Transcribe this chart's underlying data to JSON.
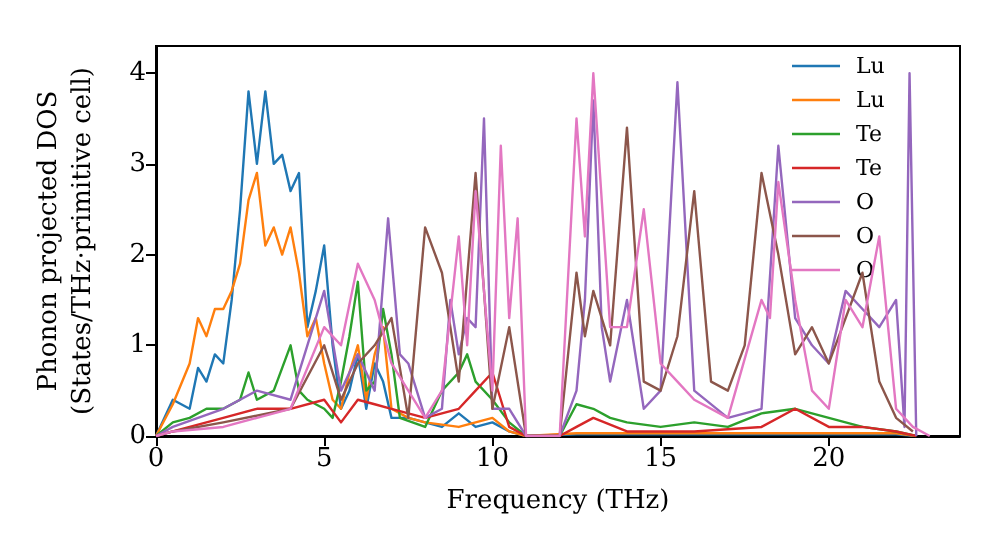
{
  "chart_data": {
    "type": "line",
    "xlabel": "Frequency (THz)",
    "ylabel": "Phonon projected DOS\n(States/THz·primitive cell)",
    "xlim": [
      0,
      23.9
    ],
    "ylim": [
      0,
      4.3
    ],
    "xticks": [
      0,
      5,
      10,
      15,
      20
    ],
    "yticks": [
      0,
      1,
      2,
      3,
      4
    ],
    "grid": false,
    "legend": "top right",
    "marker": "none",
    "line_style": "solid",
    "series": [
      {
        "name": "Lu",
        "color": "#1f77b4",
        "x": [
          0,
          0.5,
          1,
          1.25,
          1.5,
          1.75,
          2,
          2.25,
          2.5,
          2.75,
          3,
          3.25,
          3.5,
          3.75,
          4,
          4.25,
          4.5,
          4.75,
          5,
          5.25,
          5.5,
          5.75,
          6,
          6.25,
          6.5,
          6.75,
          7,
          7.5,
          8,
          8.5,
          9,
          9.5,
          10,
          10.5,
          11,
          12.5,
          15,
          18,
          20,
          22,
          22.6
        ],
        "values": [
          0,
          0.4,
          0.3,
          0.75,
          0.6,
          0.9,
          0.8,
          1.5,
          2.5,
          3.8,
          3.0,
          3.8,
          3.0,
          3.1,
          2.7,
          2.9,
          1.2,
          1.6,
          2.1,
          1.0,
          0.3,
          0.5,
          0.9,
          0.3,
          0.8,
          0.6,
          0.2,
          0.2,
          0.15,
          0.1,
          0.25,
          0.1,
          0.15,
          0.05,
          0,
          0.02,
          0.02,
          0.02,
          0.02,
          0.02,
          0
        ]
      },
      {
        "name": "Lu",
        "color": "#ff7f0e",
        "x": [
          0,
          0.5,
          1,
          1.25,
          1.5,
          1.75,
          2,
          2.25,
          2.5,
          2.75,
          3,
          3.25,
          3.5,
          3.75,
          4,
          4.25,
          4.5,
          4.75,
          5,
          5.25,
          5.5,
          5.75,
          6,
          6.25,
          6.5,
          6.75,
          7,
          7.5,
          8,
          9,
          10,
          10.5,
          11,
          12.5,
          15,
          18,
          20,
          22,
          22.6
        ],
        "values": [
          0,
          0.35,
          0.8,
          1.3,
          1.1,
          1.4,
          1.4,
          1.6,
          1.9,
          2.6,
          2.9,
          2.1,
          2.3,
          2.0,
          2.3,
          1.8,
          1.1,
          1.3,
          0.8,
          0.4,
          0.3,
          0.7,
          1.0,
          0.4,
          0.9,
          1.2,
          0.3,
          0.2,
          0.15,
          0.1,
          0.2,
          0.05,
          0,
          0.03,
          0.03,
          0.03,
          0.03,
          0.03,
          0
        ]
      },
      {
        "name": "Te",
        "color": "#2ca02c",
        "x": [
          0,
          0.5,
          1,
          1.5,
          2,
          2.5,
          2.75,
          3,
          3.5,
          4,
          4.25,
          4.5,
          5,
          5.25,
          5.5,
          5.75,
          6,
          6.25,
          6.5,
          6.75,
          7,
          7.25,
          8,
          8.5,
          9,
          9.25,
          9.5,
          10,
          10.5,
          11,
          12,
          12.5,
          13,
          13.5,
          14,
          15,
          16,
          17,
          18,
          19,
          20,
          21,
          22,
          22.6
        ],
        "values": [
          0,
          0.15,
          0.2,
          0.3,
          0.3,
          0.4,
          0.7,
          0.4,
          0.5,
          1.0,
          0.5,
          0.4,
          0.3,
          0.2,
          0.6,
          1.1,
          1.7,
          0.5,
          0.6,
          1.4,
          0.9,
          0.2,
          0.1,
          0.5,
          0.7,
          0.9,
          0.6,
          0.4,
          0.15,
          0,
          0,
          0.35,
          0.3,
          0.2,
          0.15,
          0.1,
          0.15,
          0.1,
          0.25,
          0.3,
          0.2,
          0.1,
          0.05,
          0
        ]
      },
      {
        "name": "Te",
        "color": "#d62728",
        "x": [
          0,
          0.5,
          1,
          2,
          3,
          4,
          5,
          5.5,
          6,
          6.5,
          7,
          8,
          9,
          9.5,
          10,
          10.5,
          11,
          12,
          12.5,
          13,
          14,
          15,
          16,
          18,
          19,
          20,
          21,
          22,
          22.6
        ],
        "values": [
          0,
          0.05,
          0.1,
          0.2,
          0.3,
          0.3,
          0.4,
          0.15,
          0.4,
          0.35,
          0.3,
          0.2,
          0.3,
          0.5,
          0.7,
          0.1,
          0,
          0,
          0.1,
          0.2,
          0.05,
          0.05,
          0.05,
          0.1,
          0.3,
          0.1,
          0.1,
          0.05,
          0
        ]
      },
      {
        "name": "O",
        "color": "#9467bd",
        "x": [
          0,
          0.5,
          2,
          3,
          4,
          4.5,
          5,
          5.5,
          6,
          6.5,
          6.9,
          7.25,
          7.5,
          8,
          8.5,
          8.75,
          9,
          9.25,
          9.5,
          9.75,
          10,
          10.5,
          11,
          12,
          12.5,
          12.75,
          13,
          13.25,
          13.5,
          14,
          14.5,
          15,
          15.5,
          16,
          17,
          18,
          18.5,
          19,
          19.5,
          20,
          20.5,
          21,
          21.5,
          22,
          22.25,
          22.4,
          22.6
        ],
        "values": [
          0,
          0.1,
          0.3,
          0.5,
          0.4,
          1.0,
          1.6,
          0.5,
          0.9,
          0.5,
          2.4,
          0.9,
          0.8,
          0.2,
          0.3,
          1.5,
          0.9,
          1.3,
          1.2,
          3.5,
          0.3,
          0.3,
          0,
          0,
          0.5,
          1.5,
          3.7,
          1.2,
          0.6,
          1.5,
          0.3,
          0.5,
          3.9,
          0.5,
          0.2,
          0.3,
          3.2,
          1.3,
          1.0,
          0.8,
          1.6,
          1.4,
          1.2,
          1.5,
          0.1,
          4.0,
          0
        ]
      },
      {
        "name": "O",
        "color": "#8c564b",
        "x": [
          0,
          0.5,
          2,
          4,
          5,
          5.5,
          6,
          6.5,
          7,
          7.5,
          8,
          8.5,
          9,
          9.5,
          10,
          10.5,
          11,
          12,
          12.5,
          12.75,
          13,
          13.5,
          14,
          14.5,
          15,
          15.5,
          16,
          16.5,
          17,
          17.5,
          18,
          18.5,
          19,
          19.5,
          20,
          20.5,
          21,
          21.5,
          22,
          22.5
        ],
        "values": [
          0,
          0.05,
          0.15,
          0.3,
          1.0,
          0.4,
          0.8,
          1.0,
          1.3,
          0.2,
          2.3,
          1.8,
          0.6,
          2.9,
          0.3,
          1.2,
          0,
          0,
          1.8,
          1.1,
          1.6,
          1.0,
          3.4,
          0.6,
          0.5,
          1.1,
          2.7,
          0.6,
          0.5,
          1.0,
          2.9,
          2.0,
          0.9,
          1.2,
          0.8,
          1.3,
          1.8,
          0.6,
          0.2,
          0.05
        ]
      },
      {
        "name": "O",
        "color": "#e377c2",
        "x": [
          0,
          0.5,
          2,
          3,
          4,
          5,
          5.5,
          6,
          6.5,
          7,
          7.5,
          8,
          8.5,
          9,
          9.25,
          9.5,
          10,
          10.25,
          10.5,
          10.75,
          11,
          12,
          12.5,
          12.75,
          13,
          13.5,
          14,
          14.5,
          15,
          15.5,
          16,
          17,
          18,
          18.25,
          18.5,
          19,
          19.5,
          20,
          20.5,
          21,
          21.5,
          22,
          22.5,
          23
        ],
        "values": [
          0,
          0.05,
          0.1,
          0.2,
          0.3,
          1.2,
          1.0,
          1.9,
          1.5,
          0.8,
          0.5,
          0.2,
          0.5,
          2.2,
          1.0,
          2.7,
          0.5,
          3.2,
          1.3,
          2.4,
          0,
          0,
          3.5,
          2.2,
          4.0,
          1.2,
          1.2,
          2.5,
          0.8,
          0.6,
          0.4,
          0.2,
          1.5,
          1.3,
          2.8,
          1.5,
          0.5,
          0.3,
          1.5,
          1.2,
          2.2,
          0.3,
          0.1,
          0
        ]
      }
    ]
  }
}
